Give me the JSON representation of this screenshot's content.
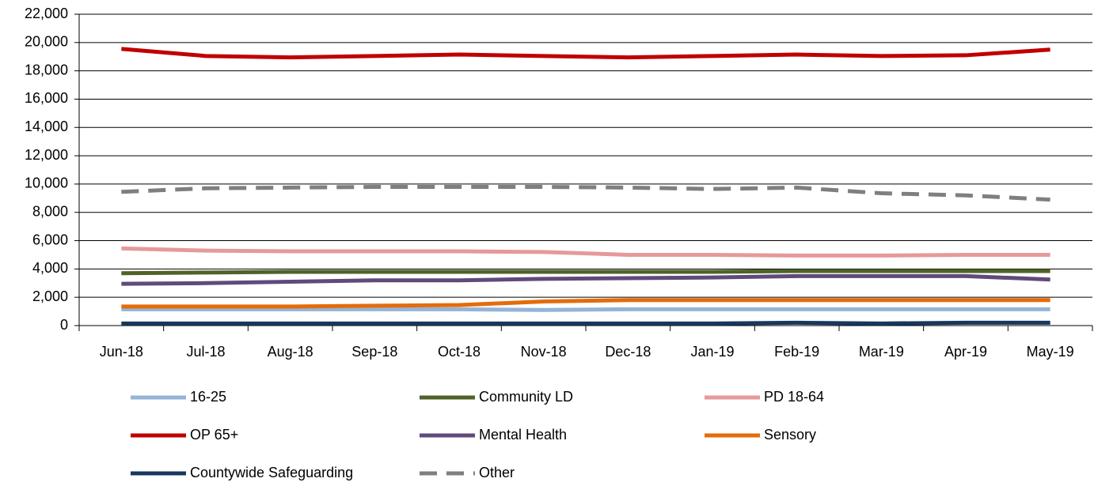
{
  "chart_data": {
    "type": "line",
    "categories": [
      "Jun-18",
      "Jul-18",
      "Aug-18",
      "Sep-18",
      "Oct-18",
      "Nov-18",
      "Dec-18",
      "Jan-19",
      "Feb-19",
      "Mar-19",
      "Apr-19",
      "May-19"
    ],
    "series": [
      {
        "name": "16-25",
        "color": "#95b3d7",
        "values": [
          1150,
          1150,
          1150,
          1150,
          1150,
          1100,
          1150,
          1150,
          1150,
          1150,
          1150,
          1150
        ]
      },
      {
        "name": "Community LD",
        "color": "#4f6228",
        "values": [
          3700,
          3750,
          3800,
          3800,
          3800,
          3800,
          3800,
          3800,
          3850,
          3850,
          3850,
          3850
        ]
      },
      {
        "name": "PD 18-64",
        "color": "#e6999a",
        "values": [
          5450,
          5300,
          5250,
          5250,
          5250,
          5200,
          5000,
          5000,
          4950,
          4950,
          5000,
          5000
        ]
      },
      {
        "name": "OP 65+",
        "color": "#c00000",
        "values": [
          19550,
          19050,
          18950,
          19050,
          19150,
          19050,
          18950,
          19050,
          19150,
          19050,
          19100,
          19500
        ]
      },
      {
        "name": "Mental Health",
        "color": "#604a7b",
        "values": [
          2950,
          3000,
          3100,
          3200,
          3200,
          3300,
          3350,
          3400,
          3500,
          3500,
          3500,
          3250
        ]
      },
      {
        "name": "Sensory",
        "color": "#e46c0a",
        "values": [
          1350,
          1350,
          1350,
          1400,
          1450,
          1700,
          1800,
          1800,
          1800,
          1800,
          1800,
          1800
        ]
      },
      {
        "name": "Countywide Safeguarding",
        "color": "#17375e",
        "values": [
          150,
          150,
          150,
          150,
          150,
          150,
          150,
          150,
          200,
          150,
          200,
          200
        ]
      },
      {
        "name": "Other",
        "color": "#7f7f7f",
        "dashed": true,
        "values": [
          9450,
          9700,
          9750,
          9800,
          9800,
          9800,
          9750,
          9650,
          9750,
          9350,
          9200,
          8900
        ]
      }
    ],
    "ylim": [
      0,
      22000
    ],
    "yticks": [
      0,
      {
        "value": 2000,
        "label": "2,000"
      },
      {
        "value": 4000,
        "label": "4,000"
      },
      {
        "value": 6000,
        "label": "6,000"
      },
      {
        "value": 8000,
        "label": "8,000"
      },
      {
        "value": 10000,
        "label": "10,000"
      },
      {
        "value": 12000,
        "label": "12,000"
      },
      {
        "value": 14000,
        "label": "14,000"
      },
      {
        "value": 16000,
        "label": "16,000"
      },
      {
        "value": 18000,
        "label": "18,000"
      },
      {
        "value": 20000,
        "label": "20,000"
      },
      {
        "value": 22000,
        "label": "22,000"
      }
    ],
    "grid": true
  }
}
